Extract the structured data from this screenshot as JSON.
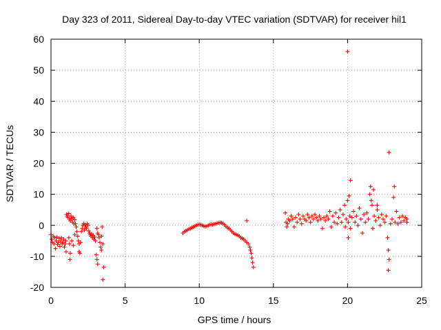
{
  "chart_data": {
    "type": "scatter",
    "title": "Day 323 of 2011, Sidereal Day-to-day VTEC variation (SDTVAR) for receiver hil1",
    "xlabel": "GPS time / hours",
    "ylabel": "SDTVAR / TECUs",
    "xlim": [
      0,
      25
    ],
    "ylim": [
      -20,
      60
    ],
    "xticks": [
      0,
      5,
      10,
      15,
      20,
      25
    ],
    "yticks": [
      -20,
      -10,
      0,
      10,
      20,
      30,
      40,
      50,
      60
    ],
    "xtick_labels": [
      "0",
      "5",
      "10",
      "15",
      "20",
      "25"
    ],
    "ytick_labels": [
      "-20",
      "-10",
      "0",
      "10",
      "20",
      "30",
      "40",
      "50",
      "60"
    ],
    "grid": true,
    "marker": "+",
    "color": "#ff0000",
    "series": [
      {
        "name": "SDTVAR",
        "points": [
          [
            0.0,
            -3.0
          ],
          [
            0.05,
            -4.5
          ],
          [
            0.1,
            -5.5
          ],
          [
            0.15,
            -3.5
          ],
          [
            0.2,
            -6.0
          ],
          [
            0.25,
            -4.0
          ],
          [
            0.3,
            -7.5
          ],
          [
            0.35,
            -5.0
          ],
          [
            0.4,
            -3.8
          ],
          [
            0.45,
            -6.2
          ],
          [
            0.5,
            -5.5
          ],
          [
            0.55,
            -4.2
          ],
          [
            0.6,
            -6.8
          ],
          [
            0.65,
            -5.0
          ],
          [
            0.7,
            -4.0
          ],
          [
            0.75,
            -6.0
          ],
          [
            0.8,
            -5.5
          ],
          [
            0.85,
            -4.5
          ],
          [
            0.9,
            -7.0
          ],
          [
            0.95,
            -6.0
          ],
          [
            1.0,
            -5.0
          ],
          [
            1.02,
            -8.5
          ],
          [
            1.05,
            3.5
          ],
          [
            1.1,
            3.0
          ],
          [
            1.15,
            2.5
          ],
          [
            1.2,
            3.8
          ],
          [
            1.25,
            2.0
          ],
          [
            1.3,
            1.5
          ],
          [
            1.35,
            3.0
          ],
          [
            1.4,
            2.2
          ],
          [
            1.45,
            1.0
          ],
          [
            1.5,
            2.5
          ],
          [
            1.55,
            0.5
          ],
          [
            1.6,
            1.8
          ],
          [
            1.2,
            -4.0
          ],
          [
            1.25,
            -6.0
          ],
          [
            1.3,
            -9.0
          ],
          [
            1.28,
            -11.0
          ],
          [
            1.4,
            -5.0
          ],
          [
            1.5,
            -6.5
          ],
          [
            1.6,
            -3.0
          ],
          [
            1.65,
            0.5
          ],
          [
            1.7,
            -0.5
          ],
          [
            1.75,
            -2.0
          ],
          [
            1.8,
            -3.5
          ],
          [
            1.85,
            -5.0
          ],
          [
            1.9,
            -6.0
          ],
          [
            1.9,
            -8.5
          ],
          [
            1.95,
            -9.0
          ],
          [
            2.0,
            -5.5
          ],
          [
            2.05,
            -2.0
          ],
          [
            2.1,
            -1.0
          ],
          [
            2.15,
            0.0
          ],
          [
            2.2,
            0.5
          ],
          [
            2.25,
            -1.5
          ],
          [
            2.3,
            0.2
          ],
          [
            2.35,
            -0.5
          ],
          [
            2.4,
            -1.0
          ],
          [
            2.45,
            0.5
          ],
          [
            2.5,
            0.0
          ],
          [
            2.55,
            -1.8
          ],
          [
            2.6,
            -2.5
          ],
          [
            2.65,
            -3.0
          ],
          [
            2.7,
            -3.5
          ],
          [
            2.75,
            -2.8
          ],
          [
            2.8,
            -4.0
          ],
          [
            2.85,
            -3.2
          ],
          [
            2.9,
            -4.5
          ],
          [
            2.95,
            -3.8
          ],
          [
            3.0,
            -5.0
          ],
          [
            3.05,
            -9.5
          ],
          [
            3.1,
            -11.0
          ],
          [
            3.15,
            -12.5
          ],
          [
            3.1,
            -1.0
          ],
          [
            3.15,
            -2.5
          ],
          [
            3.2,
            -3.0
          ],
          [
            3.25,
            -4.0
          ],
          [
            3.3,
            -5.5
          ],
          [
            3.35,
            -7.0
          ],
          [
            3.4,
            -3.5
          ],
          [
            3.45,
            -0.5
          ],
          [
            3.5,
            -6.0
          ],
          [
            3.55,
            -13.5
          ],
          [
            3.5,
            -17.5
          ],
          [
            3.4,
            -8.0
          ],
          [
            8.9,
            -2.5
          ],
          [
            9.0,
            -2.0
          ],
          [
            9.1,
            -1.8
          ],
          [
            9.2,
            -1.5
          ],
          [
            9.3,
            -1.2
          ],
          [
            9.4,
            -1.0
          ],
          [
            9.5,
            -0.8
          ],
          [
            9.6,
            -0.5
          ],
          [
            9.7,
            -0.3
          ],
          [
            9.8,
            0.0
          ],
          [
            9.9,
            0.2
          ],
          [
            10.0,
            0.3
          ],
          [
            10.1,
            0.2
          ],
          [
            10.2,
            0.0
          ],
          [
            10.3,
            -0.2
          ],
          [
            10.4,
            -0.4
          ],
          [
            10.5,
            -0.3
          ],
          [
            10.6,
            0.0
          ],
          [
            10.7,
            0.2
          ],
          [
            10.8,
            0.3
          ],
          [
            10.9,
            0.2
          ],
          [
            11.0,
            0.4
          ],
          [
            11.1,
            0.5
          ],
          [
            11.2,
            0.7
          ],
          [
            11.3,
            0.8
          ],
          [
            11.4,
            0.9
          ],
          [
            11.5,
            0.8
          ],
          [
            11.6,
            0.6
          ],
          [
            11.7,
            0.2
          ],
          [
            11.8,
            -0.3
          ],
          [
            11.9,
            -0.8
          ],
          [
            12.0,
            -1.0
          ],
          [
            12.1,
            -1.5
          ],
          [
            12.2,
            -2.0
          ],
          [
            12.3,
            -2.5
          ],
          [
            12.4,
            -2.8
          ],
          [
            12.5,
            -3.0
          ],
          [
            12.6,
            -3.2
          ],
          [
            12.7,
            -3.5
          ],
          [
            12.8,
            -4.0
          ],
          [
            12.9,
            -4.2
          ],
          [
            13.0,
            -4.5
          ],
          [
            13.1,
            -5.0
          ],
          [
            13.2,
            -5.5
          ],
          [
            13.3,
            -6.0
          ],
          [
            13.4,
            -7.0
          ],
          [
            13.45,
            -8.0
          ],
          [
            13.5,
            -9.0
          ],
          [
            13.55,
            -10.5
          ],
          [
            13.6,
            -12.0
          ],
          [
            13.65,
            -13.5
          ],
          [
            13.2,
            1.5
          ],
          [
            15.8,
            4.0
          ],
          [
            15.85,
            1.0
          ],
          [
            15.9,
            -0.5
          ],
          [
            15.95,
            0.5
          ],
          [
            16.0,
            2.0
          ],
          [
            16.1,
            1.5
          ],
          [
            16.2,
            3.0
          ],
          [
            16.3,
            2.0
          ],
          [
            16.4,
            -0.5
          ],
          [
            16.5,
            2.5
          ],
          [
            16.6,
            1.0
          ],
          [
            16.7,
            3.5
          ],
          [
            16.8,
            2.0
          ],
          [
            16.9,
            0.5
          ],
          [
            17.0,
            3.0
          ],
          [
            17.1,
            2.0
          ],
          [
            17.2,
            1.5
          ],
          [
            17.3,
            3.5
          ],
          [
            17.4,
            2.5
          ],
          [
            17.5,
            1.0
          ],
          [
            17.6,
            3.0
          ],
          [
            17.7,
            2.0
          ],
          [
            17.8,
            3.5
          ],
          [
            17.9,
            2.5
          ],
          [
            18.0,
            1.5
          ],
          [
            18.1,
            3.0
          ],
          [
            18.2,
            2.0
          ],
          [
            18.3,
            -1.0
          ],
          [
            18.4,
            2.5
          ],
          [
            18.5,
            1.5
          ],
          [
            18.6,
            3.0
          ],
          [
            18.7,
            2.0
          ],
          [
            18.8,
            4.5
          ],
          [
            18.9,
            -0.5
          ],
          [
            19.0,
            3.0
          ],
          [
            19.1,
            1.0
          ],
          [
            19.2,
            4.0
          ],
          [
            19.3,
            0.5
          ],
          [
            19.4,
            2.5
          ],
          [
            19.5,
            5.0
          ],
          [
            19.6,
            1.0
          ],
          [
            19.7,
            3.5
          ],
          [
            19.8,
            6.5
          ],
          [
            19.85,
            -0.5
          ],
          [
            19.9,
            2.0
          ],
          [
            20.0,
            8.0
          ],
          [
            20.05,
            1.0
          ],
          [
            20.1,
            9.5
          ],
          [
            20.15,
            3.0
          ],
          [
            20.2,
            -1.0
          ],
          [
            20.3,
            2.5
          ],
          [
            20.4,
            4.5
          ],
          [
            20.5,
            1.0
          ],
          [
            20.6,
            3.0
          ],
          [
            20.7,
            0.0
          ],
          [
            20.8,
            5.5
          ],
          [
            20.9,
            2.0
          ],
          [
            21.0,
            -2.5
          ],
          [
            21.1,
            3.5
          ],
          [
            21.2,
            1.0
          ],
          [
            21.3,
            4.0
          ],
          [
            21.4,
            2.0
          ],
          [
            21.5,
            10.0
          ],
          [
            21.55,
            12.5
          ],
          [
            21.6,
            8.0
          ],
          [
            21.65,
            6.5
          ],
          [
            21.7,
            -1.0
          ],
          [
            21.8,
            3.0
          ],
          [
            21.9,
            1.5
          ],
          [
            22.0,
            5.0
          ],
          [
            22.1,
            2.5
          ],
          [
            22.2,
            0.0
          ],
          [
            22.3,
            3.5
          ],
          [
            22.4,
            2.0
          ],
          [
            22.5,
            1.0
          ],
          [
            22.6,
            3.0
          ],
          [
            22.7,
            -4.0
          ],
          [
            22.75,
            -8.0
          ],
          [
            22.8,
            -11.0
          ],
          [
            22.75,
            -14.5
          ],
          [
            22.8,
            23.5
          ],
          [
            22.9,
            0.5
          ],
          [
            23.0,
            2.0
          ],
          [
            23.1,
            9.0
          ],
          [
            23.15,
            12.5
          ],
          [
            23.2,
            1.0
          ],
          [
            23.3,
            4.5
          ],
          [
            23.4,
            0.5
          ],
          [
            23.5,
            2.5
          ],
          [
            23.6,
            1.0
          ],
          [
            23.7,
            3.0
          ],
          [
            23.8,
            1.5
          ],
          [
            23.9,
            2.5
          ],
          [
            24.0,
            1.0
          ],
          [
            24.0,
            2.0
          ],
          [
            20.0,
            56.0
          ],
          [
            20.2,
            14.5
          ],
          [
            21.75,
            11.5
          ],
          [
            22.0,
            6.5
          ],
          [
            20.05,
            -4.0
          ]
        ]
      }
    ]
  }
}
